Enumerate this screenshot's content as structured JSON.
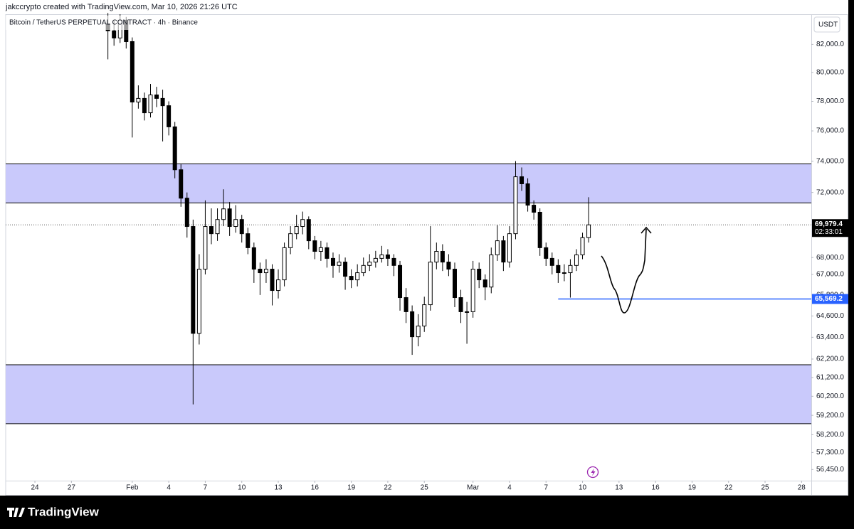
{
  "header": {
    "text": "jakccrypto created with TradingView.com, Mar 10, 2026 21:26 UTC"
  },
  "footer": {
    "brand": "TradingView"
  },
  "chart_data": {
    "type": "candlestick",
    "title": "Bitcoin / TetherUS PERPETUAL CONTRACT · 4h · Binance",
    "currency": "USDT",
    "log_scale": true,
    "xlim": [
      -2.4,
      63.8
    ],
    "ylim": [
      55900,
      84200
    ],
    "xticks": [
      {
        "value": 0,
        "label": "24"
      },
      {
        "value": 3,
        "label": "27"
      },
      {
        "value": 8,
        "label": "Feb"
      },
      {
        "value": 11,
        "label": "4"
      },
      {
        "value": 14,
        "label": "7"
      },
      {
        "value": 17,
        "label": "10"
      },
      {
        "value": 20,
        "label": "13"
      },
      {
        "value": 23,
        "label": "16"
      },
      {
        "value": 26,
        "label": "19"
      },
      {
        "value": 29,
        "label": "22"
      },
      {
        "value": 32,
        "label": "25"
      },
      {
        "value": 36,
        "label": "Mar"
      },
      {
        "value": 39,
        "label": "4"
      },
      {
        "value": 42,
        "label": "7"
      },
      {
        "value": 45,
        "label": "10"
      },
      {
        "value": 48,
        "label": "13"
      },
      {
        "value": 51,
        "label": "16"
      },
      {
        "value": 54,
        "label": "19"
      },
      {
        "value": 57,
        "label": "22"
      },
      {
        "value": 60,
        "label": "25"
      },
      {
        "value": 63,
        "label": "28"
      }
    ],
    "yticks": [
      {
        "value": 82000,
        "label": "82,000.0"
      },
      {
        "value": 80000,
        "label": "80,000.0"
      },
      {
        "value": 78000,
        "label": "78,000.0"
      },
      {
        "value": 76000,
        "label": "76,000.0"
      },
      {
        "value": 74000,
        "label": "74,000.0"
      },
      {
        "value": 72000,
        "label": "72,000.0"
      },
      {
        "value": 68000,
        "label": "68,000.0"
      },
      {
        "value": 67000,
        "label": "67,000.0"
      },
      {
        "value": 65800,
        "label": "65,800.0"
      },
      {
        "value": 64600,
        "label": "64,600.0"
      },
      {
        "value": 63400,
        "label": "63,400.0"
      },
      {
        "value": 62200,
        "label": "62,200.0"
      },
      {
        "value": 61200,
        "label": "61,200.0"
      },
      {
        "value": 60200,
        "label": "60,200.0"
      },
      {
        "value": 59200,
        "label": "59,200.0"
      },
      {
        "value": 58200,
        "label": "58,200.0"
      },
      {
        "value": 57300,
        "label": "57,300.0"
      },
      {
        "value": 56450,
        "label": "56,450.0"
      }
    ],
    "up_color": "#ffffff",
    "down_color": "#000000",
    "wick_color": "#000000",
    "zone_color": "#c9c9fb",
    "zones": [
      {
        "top": 73830,
        "bottom": 71340
      },
      {
        "top": 61890,
        "bottom": 58770
      }
    ],
    "level": {
      "value": 65569.2,
      "label": "65,569.2",
      "start": 43,
      "color": "#2962ff"
    },
    "last_price": {
      "value": 69979.4,
      "label": "69,979.4",
      "countdown": "02:33:01"
    },
    "x": [
      6,
      6.5,
      7,
      7.5,
      8,
      8.5,
      9,
      9.5,
      10,
      10.5,
      11,
      11.5,
      12,
      12.5,
      13,
      13.5,
      14,
      14.5,
      15,
      15.5,
      16,
      16.5,
      17,
      17.5,
      18,
      18.5,
      19,
      19.5,
      20,
      20.5,
      21,
      21.5,
      22,
      22.5,
      23,
      23.5,
      24,
      24.5,
      25,
      25.5,
      26,
      26.5,
      27,
      27.5,
      28,
      28.5,
      29,
      29.5,
      30,
      30.5,
      31,
      31.5,
      32,
      32.5,
      33,
      33.5,
      34,
      34.5,
      35,
      35.5,
      36,
      36.5,
      37,
      37.5,
      38,
      38.5,
      39,
      39.5,
      40,
      40.5,
      41,
      41.5,
      42,
      42.5,
      43,
      43.5,
      44,
      44.5,
      45,
      45.5
    ],
    "open": [
      83500,
      82980,
      82460,
      83760,
      82200,
      77950,
      78200,
      77220,
      78440,
      78200,
      77700,
      76270,
      73450,
      71640,
      69880,
      63620,
      67310,
      69880,
      69440,
      70310,
      70970,
      69880,
      70310,
      69440,
      68590,
      67310,
      67100,
      67310,
      66060,
      66680,
      68590,
      69440,
      69880,
      70310,
      69010,
      68370,
      68590,
      67950,
      67530,
      67730,
      66890,
      66680,
      67100,
      67530,
      67730,
      67950,
      68160,
      67950,
      67530,
      65650,
      64840,
      63430,
      64030,
      65240,
      67730,
      68370,
      67730,
      67310,
      65650,
      64840,
      64840,
      67310,
      66680,
      66260,
      68160,
      69010,
      67730,
      69440,
      73000,
      72550,
      71200,
      70760,
      68590,
      67950,
      67530,
      67100,
      67100,
      67530,
      68160,
      69200
    ],
    "high": [
      84290,
      83800,
      84200,
      84000,
      82500,
      79100,
      78600,
      79200,
      79000,
      78800,
      78000,
      76600,
      73800,
      72000,
      70300,
      68200,
      71500,
      71000,
      71000,
      72200,
      71400,
      71200,
      70600,
      69800,
      68900,
      67700,
      67900,
      67600,
      67300,
      68900,
      69900,
      70600,
      70800,
      70500,
      69300,
      69000,
      68900,
      68300,
      68200,
      68000,
      67300,
      67600,
      68000,
      68200,
      68400,
      68700,
      68500,
      68200,
      67800,
      66200,
      65200,
      64700,
      65700,
      69900,
      68900,
      68800,
      68200,
      67700,
      66100,
      65400,
      67800,
      67700,
      67000,
      68600,
      69960,
      69300,
      69900,
      74010,
      73600,
      72900,
      71500,
      71000,
      68900,
      68300,
      67900,
      67600,
      67900,
      68500,
      69500,
      71700
    ],
    "low": [
      80930,
      81900,
      82100,
      81700,
      75560,
      77500,
      76700,
      76900,
      77600,
      75300,
      75700,
      72900,
      71100,
      69200,
      59770,
      63000,
      67000,
      68800,
      69000,
      69900,
      69300,
      69500,
      68900,
      68200,
      66500,
      65800,
      66500,
      65200,
      65600,
      66300,
      68200,
      69100,
      69400,
      68500,
      67900,
      67800,
      67400,
      66800,
      67100,
      66100,
      66200,
      66300,
      66900,
      67200,
      67400,
      67700,
      67500,
      66900,
      64900,
      64200,
      62430,
      62900,
      63700,
      64900,
      67300,
      67200,
      66900,
      65100,
      64200,
      63040,
      64500,
      66200,
      65500,
      65900,
      67800,
      67200,
      67400,
      69100,
      72100,
      70800,
      70300,
      68100,
      67500,
      67000,
      66500,
      66600,
      65650,
      67200,
      67900,
      68900
    ],
    "close": [
      82980,
      82460,
      83760,
      82200,
      77950,
      78200,
      77220,
      78440,
      78200,
      77700,
      76270,
      73450,
      71640,
      69880,
      63620,
      67310,
      69880,
      69440,
      70310,
      70970,
      69880,
      70310,
      69440,
      68590,
      67310,
      67100,
      67310,
      66060,
      66680,
      68590,
      69440,
      69880,
      70310,
      69010,
      68370,
      68590,
      67950,
      67530,
      67730,
      66890,
      66680,
      67100,
      67530,
      67730,
      67950,
      68160,
      67950,
      67530,
      65650,
      64840,
      63430,
      64030,
      65240,
      67730,
      68370,
      67730,
      67310,
      65650,
      64840,
      64840,
      67310,
      66680,
      66260,
      68160,
      69010,
      67730,
      69440,
      73000,
      72550,
      71200,
      70760,
      68590,
      67950,
      67530,
      67100,
      67100,
      67530,
      68160,
      69200,
      69979.4
    ]
  }
}
